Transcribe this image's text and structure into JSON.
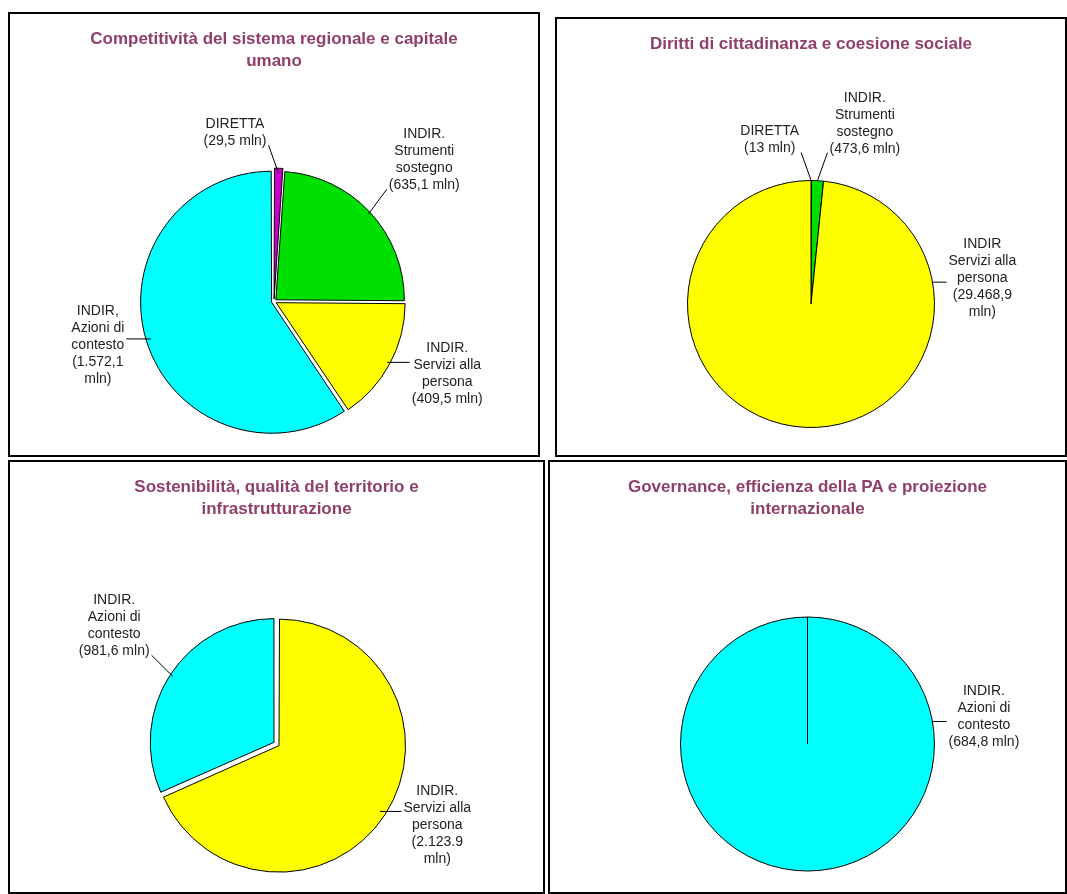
{
  "chart_data": [
    {
      "type": "pie",
      "title": "Competitività del sistema  regionale e capitale umano",
      "categories": [
        "DIRETTA",
        "INDIR. Strumenti sostegno",
        "INDIR. Servizi alla persona",
        "INDIR, Azioni di contesto"
      ],
      "values": [
        29.5,
        635.1,
        409.5,
        1572.1
      ],
      "colors": [
        "#cc00cc",
        "#00e000",
        "#ffff00",
        "#00ffff"
      ],
      "value_labels": [
        "(29,5 mln)",
        "(635,1 mln)",
        "(409,5 mln)",
        "(1.572,1 mln)"
      ]
    },
    {
      "type": "pie",
      "title": "Diritti  di cittadinanza e coesione sociale",
      "categories": [
        "DIRETTA",
        "INDIR. Strumenti sostegno",
        "INDIR Servizi alla persona"
      ],
      "values": [
        13,
        473.6,
        29468.9
      ],
      "colors": [
        "#cc00cc",
        "#00e000",
        "#ffff00"
      ],
      "value_labels": [
        "(13 mln)",
        "(473,6 mln)",
        "(29.468,9 mln)"
      ]
    },
    {
      "type": "pie",
      "title": "Sostenibilità, qualità del territorio e infrastrutturazione",
      "categories": [
        "INDIR. Servizi alla persona",
        "INDIR. Azioni di contesto"
      ],
      "values": [
        2123.9,
        981.6
      ],
      "colors": [
        "#ffff00",
        "#00ffff"
      ],
      "value_labels": [
        "(2.123.9 mln)",
        "(981,6 mln)"
      ]
    },
    {
      "type": "pie",
      "title": "Governance, efficienza della PA e proiezione internazionale",
      "categories": [
        "INDIR. Azioni di contesto"
      ],
      "values": [
        684.8
      ],
      "colors": [
        "#00ffff"
      ],
      "value_labels": [
        "(684,8 mln)"
      ]
    }
  ]
}
